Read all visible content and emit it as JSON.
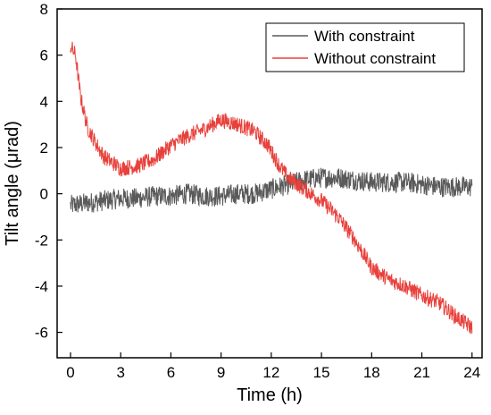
{
  "chart_data": {
    "type": "line",
    "title": "",
    "xlabel": "Time (h)",
    "ylabel": "Tilt angle (μrad)",
    "xlim": [
      -0.8,
      24.6
    ],
    "ylim": [
      -7.1,
      8
    ],
    "xticks": [
      0,
      3,
      6,
      9,
      12,
      15,
      18,
      21,
      24
    ],
    "yticks": [
      -6,
      -4,
      -2,
      0,
      2,
      4,
      6,
      8
    ],
    "legend_position": "top-right",
    "grid": false,
    "series": [
      {
        "name": "With constraint",
        "color": "#5a5a5a",
        "noise": 0.45,
        "points": [
          [
            0,
            -0.5
          ],
          [
            1,
            -0.4
          ],
          [
            2,
            -0.3
          ],
          [
            3,
            -0.2
          ],
          [
            4,
            -0.2
          ],
          [
            5,
            -0.1
          ],
          [
            6,
            -0.1
          ],
          [
            7,
            0.0
          ],
          [
            8,
            -0.1
          ],
          [
            9,
            -0.1
          ],
          [
            10,
            0.0
          ],
          [
            11,
            0.0
          ],
          [
            12,
            0.2
          ],
          [
            13,
            0.4
          ],
          [
            14,
            0.6
          ],
          [
            15,
            0.7
          ],
          [
            16,
            0.7
          ],
          [
            17,
            0.6
          ],
          [
            18,
            0.5
          ],
          [
            19,
            0.5
          ],
          [
            20,
            0.5
          ],
          [
            21,
            0.4
          ],
          [
            22,
            0.3
          ],
          [
            23,
            0.3
          ],
          [
            24,
            0.3
          ]
        ]
      },
      {
        "name": "Without constraint",
        "color": "#e8413c",
        "noise": 0.35,
        "points": [
          [
            0,
            6.4
          ],
          [
            0.3,
            6.0
          ],
          [
            0.6,
            4.2
          ],
          [
            1,
            2.9
          ],
          [
            1.5,
            2.2
          ],
          [
            2,
            1.6
          ],
          [
            3,
            1.1
          ],
          [
            4,
            1.2
          ],
          [
            5,
            1.5
          ],
          [
            6,
            2.1
          ],
          [
            7,
            2.5
          ],
          [
            8,
            2.8
          ],
          [
            9,
            3.2
          ],
          [
            10,
            3.0
          ],
          [
            11,
            2.7
          ],
          [
            11.8,
            2.1
          ],
          [
            12.5,
            1.2
          ],
          [
            13,
            0.7
          ],
          [
            14,
            0.2
          ],
          [
            15,
            -0.3
          ],
          [
            16,
            -1.0
          ],
          [
            17,
            -2.0
          ],
          [
            18,
            -3.2
          ],
          [
            19,
            -3.7
          ],
          [
            20,
            -4.0
          ],
          [
            21,
            -4.4
          ],
          [
            22,
            -4.7
          ],
          [
            23,
            -5.3
          ],
          [
            24,
            -5.8
          ]
        ]
      }
    ]
  }
}
